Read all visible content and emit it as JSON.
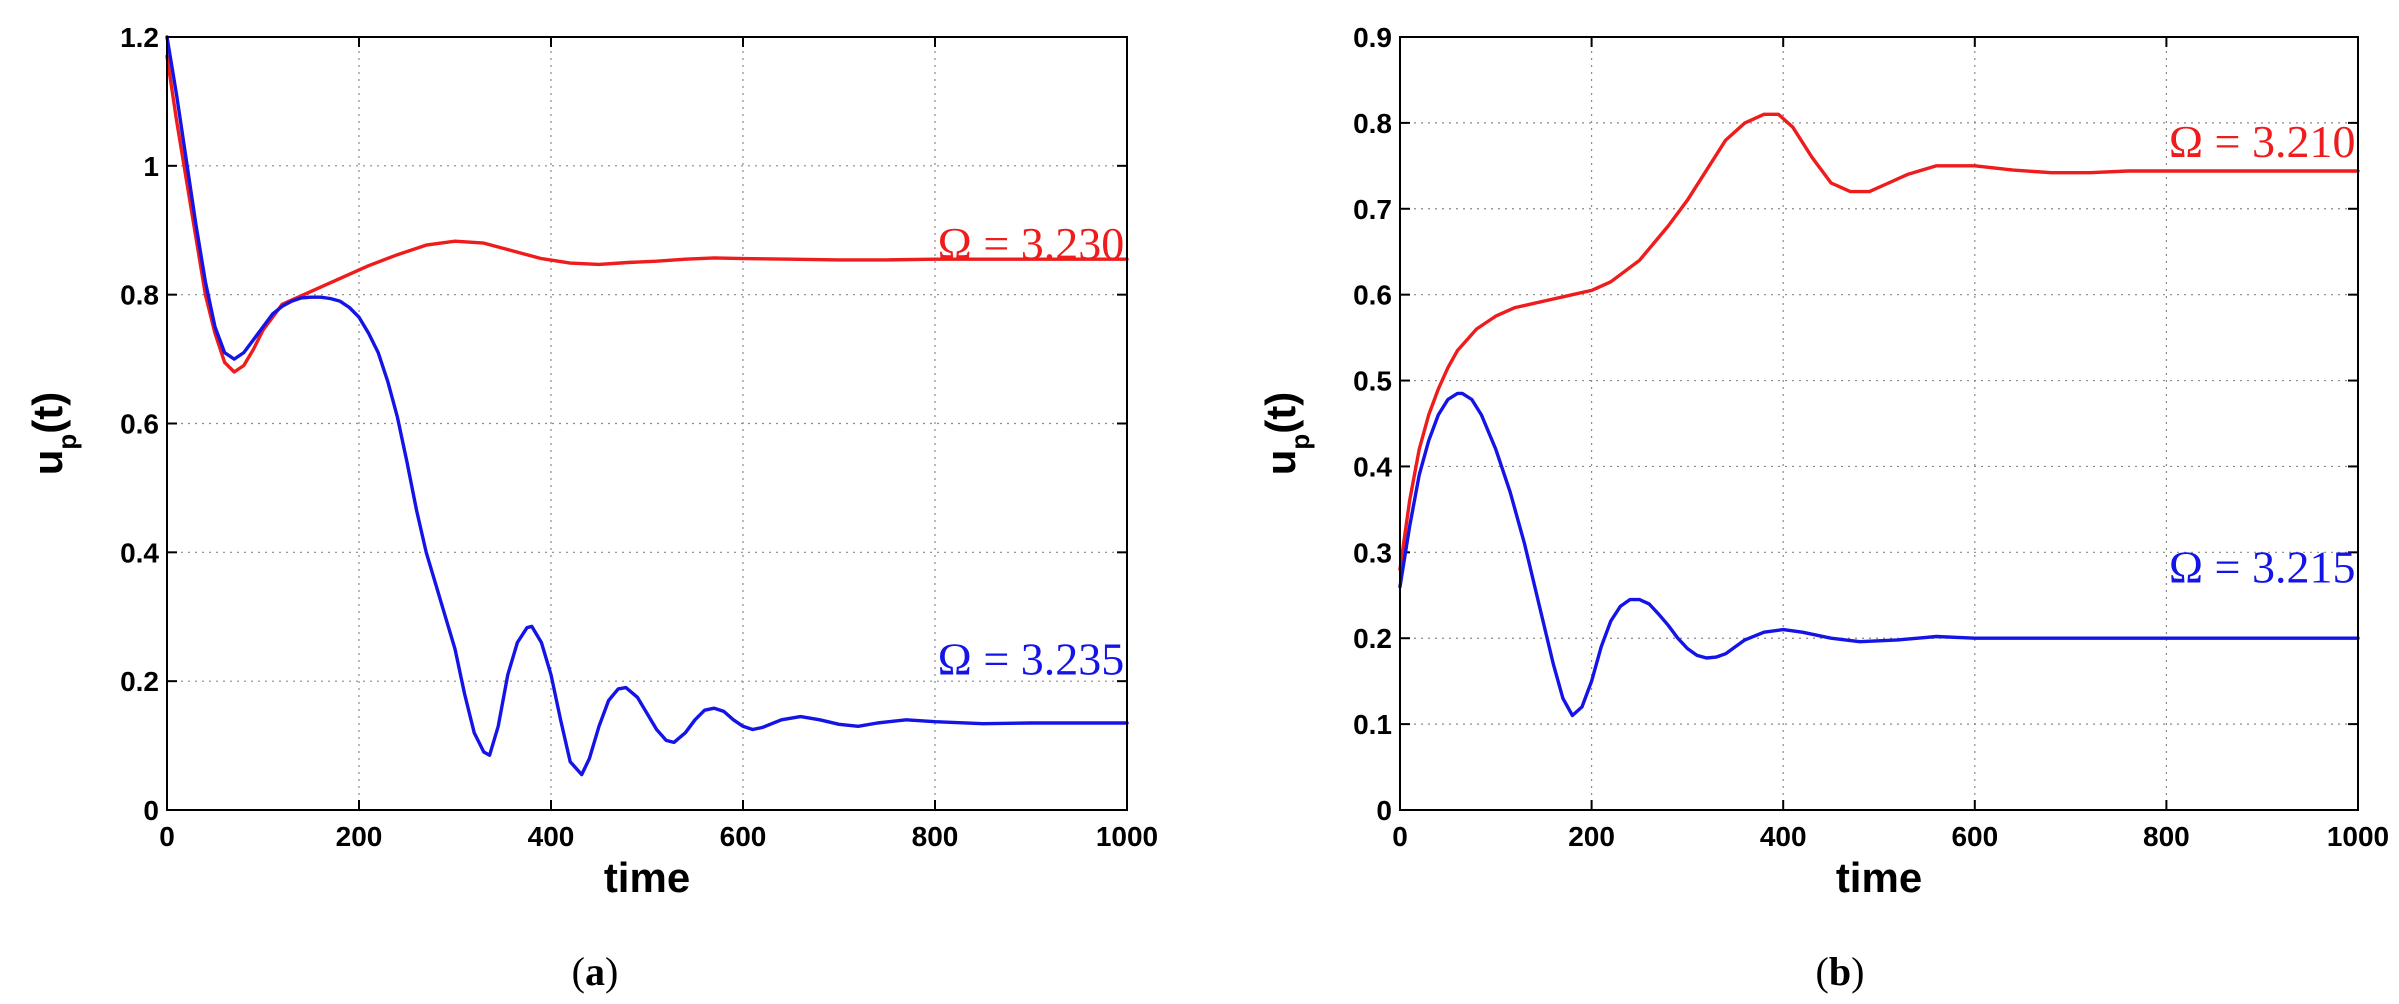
{
  "chart_data": [
    {
      "type": "line",
      "caption": "a",
      "xlabel": "time",
      "ylabel_main": "u",
      "ylabel_sub": "p",
      "ylabel_tail": "(t)",
      "xlim": [
        0,
        1000
      ],
      "ylim": [
        0,
        1.2
      ],
      "xticks": [
        0,
        200,
        400,
        600,
        800,
        1000
      ],
      "yticks": [
        0,
        0.2,
        0.4,
        0.6,
        0.8,
        1,
        1.2
      ],
      "ytick_labels": [
        "0",
        "0.2",
        "0.4",
        "0.6",
        "0.8",
        "1",
        "1.2"
      ],
      "grid": true,
      "series": [
        {
          "name": "Ω = 3.230",
          "color": "#ee1c1c",
          "label_pos": [
            900,
            0.855
          ],
          "x": [
            0,
            10,
            20,
            30,
            40,
            50,
            60,
            70,
            80,
            90,
            100,
            120,
            150,
            180,
            210,
            240,
            270,
            300,
            330,
            360,
            390,
            420,
            450,
            480,
            510,
            540,
            570,
            600,
            650,
            700,
            750,
            800,
            900,
            1000
          ],
          "y": [
            1.17,
            1.07,
            0.98,
            0.89,
            0.8,
            0.74,
            0.695,
            0.68,
            0.69,
            0.715,
            0.745,
            0.785,
            0.805,
            0.825,
            0.845,
            0.862,
            0.877,
            0.883,
            0.88,
            0.868,
            0.856,
            0.849,
            0.847,
            0.85,
            0.852,
            0.855,
            0.857,
            0.856,
            0.855,
            0.854,
            0.854,
            0.855,
            0.855,
            0.855
          ]
        },
        {
          "name": "Ω = 3.235",
          "color": "#1414e6",
          "label_pos": [
            900,
            0.21
          ],
          "x": [
            0,
            10,
            20,
            30,
            40,
            50,
            60,
            70,
            80,
            90,
            100,
            110,
            120,
            130,
            140,
            150,
            160,
            170,
            180,
            190,
            200,
            210,
            220,
            230,
            240,
            250,
            260,
            270,
            280,
            290,
            300,
            310,
            320,
            330,
            336,
            345,
            355,
            365,
            375,
            380,
            390,
            400,
            410,
            420,
            432,
            440,
            450,
            460,
            470,
            478,
            490,
            500,
            510,
            520,
            528,
            540,
            550,
            560,
            570,
            580,
            590,
            600,
            610,
            620,
            640,
            660,
            680,
            700,
            720,
            740,
            770,
            800,
            850,
            900,
            1000
          ],
          "y": [
            1.2,
            1.11,
            1.01,
            0.91,
            0.82,
            0.75,
            0.71,
            0.7,
            0.71,
            0.73,
            0.75,
            0.77,
            0.782,
            0.79,
            0.795,
            0.796,
            0.796,
            0.794,
            0.79,
            0.78,
            0.765,
            0.74,
            0.71,
            0.665,
            0.61,
            0.54,
            0.465,
            0.4,
            0.35,
            0.3,
            0.25,
            0.18,
            0.12,
            0.09,
            0.085,
            0.13,
            0.21,
            0.26,
            0.283,
            0.285,
            0.26,
            0.21,
            0.14,
            0.075,
            0.055,
            0.08,
            0.13,
            0.17,
            0.188,
            0.19,
            0.175,
            0.15,
            0.125,
            0.108,
            0.105,
            0.12,
            0.14,
            0.155,
            0.158,
            0.153,
            0.14,
            0.13,
            0.125,
            0.128,
            0.14,
            0.145,
            0.14,
            0.133,
            0.13,
            0.135,
            0.14,
            0.137,
            0.134,
            0.135,
            0.135
          ]
        }
      ]
    },
    {
      "type": "line",
      "caption": "b",
      "xlabel": "time",
      "ylabel_main": "u",
      "ylabel_sub": "p",
      "ylabel_tail": "(t)",
      "xlim": [
        0,
        1000
      ],
      "ylim": [
        0,
        0.9
      ],
      "xticks": [
        0,
        200,
        400,
        600,
        800,
        1000
      ],
      "yticks": [
        0,
        0.1,
        0.2,
        0.3,
        0.4,
        0.5,
        0.6,
        0.7,
        0.8,
        0.9
      ],
      "ytick_labels": [
        "0",
        "0.1",
        "0.2",
        "0.3",
        "0.4",
        "0.5",
        "0.6",
        "0.7",
        "0.8",
        "0.9"
      ],
      "grid": true,
      "series": [
        {
          "name": "Ω = 3.210",
          "color": "#ee1c1c",
          "label_pos": [
            900,
            0.76
          ],
          "x": [
            0,
            10,
            20,
            30,
            40,
            50,
            60,
            80,
            100,
            120,
            140,
            160,
            180,
            200,
            220,
            250,
            280,
            300,
            320,
            340,
            360,
            380,
            395,
            410,
            430,
            450,
            470,
            490,
            510,
            530,
            560,
            600,
            640,
            680,
            720,
            760,
            800,
            900,
            1000
          ],
          "y": [
            0.28,
            0.36,
            0.42,
            0.46,
            0.49,
            0.515,
            0.535,
            0.56,
            0.575,
            0.585,
            0.59,
            0.595,
            0.6,
            0.605,
            0.615,
            0.64,
            0.68,
            0.71,
            0.745,
            0.78,
            0.8,
            0.81,
            0.81,
            0.795,
            0.76,
            0.73,
            0.72,
            0.72,
            0.73,
            0.74,
            0.75,
            0.75,
            0.745,
            0.742,
            0.742,
            0.744,
            0.744,
            0.744,
            0.744
          ]
        },
        {
          "name": "Ω = 3.215",
          "color": "#1414e6",
          "label_pos": [
            900,
            0.265
          ],
          "x": [
            0,
            10,
            20,
            30,
            40,
            50,
            60,
            65,
            75,
            85,
            100,
            115,
            130,
            145,
            160,
            170,
            180,
            190,
            200,
            210,
            220,
            230,
            240,
            250,
            260,
            270,
            280,
            290,
            300,
            310,
            320,
            330,
            340,
            350,
            360,
            380,
            400,
            420,
            450,
            480,
            520,
            560,
            600,
            650,
            700,
            800,
            900,
            1000
          ],
          "y": [
            0.26,
            0.33,
            0.39,
            0.43,
            0.46,
            0.478,
            0.485,
            0.485,
            0.478,
            0.46,
            0.42,
            0.37,
            0.31,
            0.24,
            0.17,
            0.13,
            0.11,
            0.12,
            0.15,
            0.19,
            0.22,
            0.237,
            0.245,
            0.245,
            0.24,
            0.228,
            0.215,
            0.2,
            0.188,
            0.18,
            0.177,
            0.178,
            0.182,
            0.19,
            0.198,
            0.207,
            0.21,
            0.207,
            0.2,
            0.196,
            0.198,
            0.202,
            0.2,
            0.2,
            0.2,
            0.2,
            0.2,
            0.2
          ]
        }
      ]
    }
  ]
}
